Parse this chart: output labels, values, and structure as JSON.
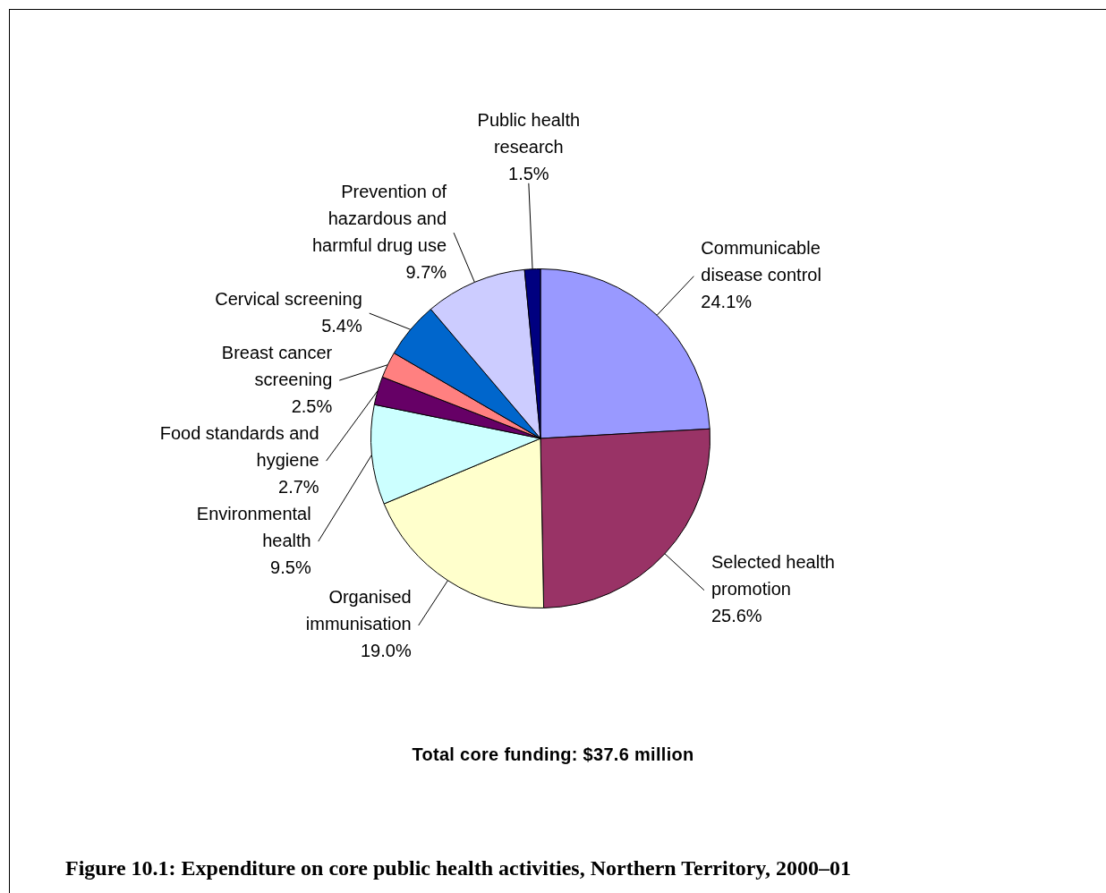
{
  "chart_data": {
    "type": "pie",
    "title": "Figure 10.1: Expenditure on core public health activities, Northern Territory, 2000–01",
    "subtitle": "Total core funding: $37.6 million",
    "categories": [
      "Communicable disease control",
      "Selected health promotion",
      "Organised immunisation",
      "Environmental health",
      "Food standards and hygiene",
      "Breast cancer screening",
      "Cervical screening",
      "Prevention of hazardous and harmful drug use",
      "Public health research"
    ],
    "values": [
      24.1,
      25.6,
      19.0,
      9.5,
      2.7,
      2.5,
      5.4,
      9.7,
      1.5
    ],
    "value_labels": [
      "24.1%",
      "25.6%",
      "19.0%",
      "9.5%",
      "2.7%",
      "2.5%",
      "5.4%",
      "9.7%",
      "1.5%"
    ],
    "colors": [
      "#9999ff",
      "#993366",
      "#ffffcc",
      "#ccffff",
      "#660066",
      "#ff8080",
      "#0066cc",
      "#ccccff",
      "#000080"
    ],
    "legend": false
  }
}
